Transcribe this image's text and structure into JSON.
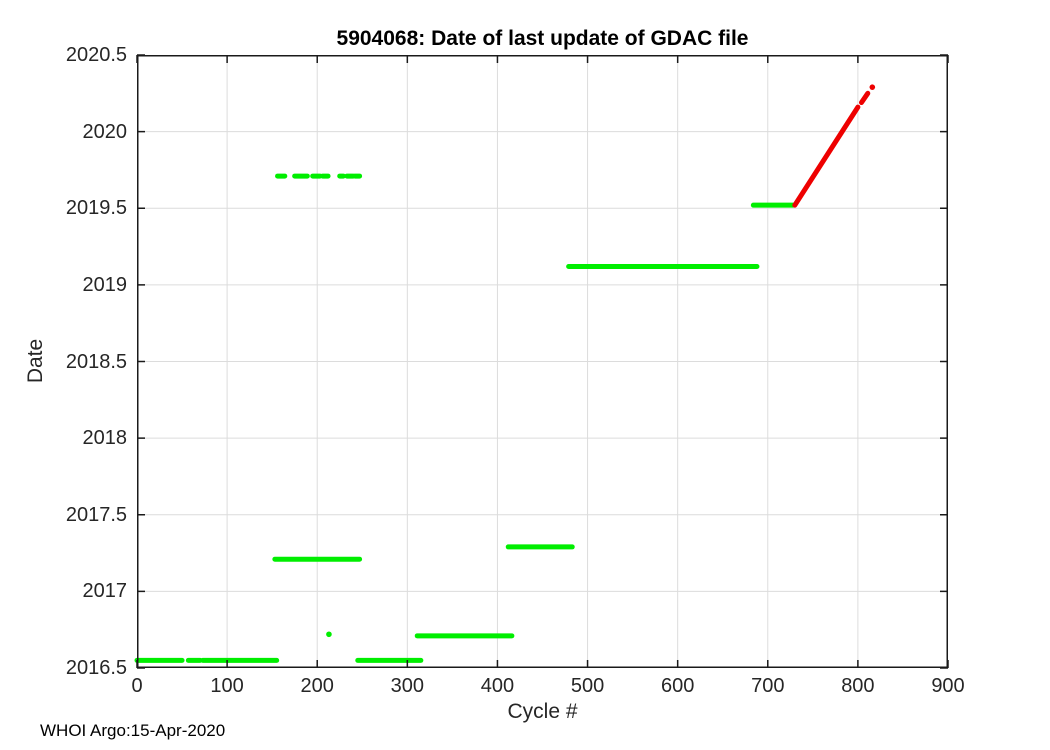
{
  "footer": {
    "text": "WHOI Argo:15-Apr-2020"
  },
  "chart_data": {
    "type": "scatter",
    "title": "5904068: Date of last update of GDAC file",
    "xlabel": "Cycle #",
    "ylabel": "Date",
    "xlim": [
      0,
      900
    ],
    "ylim": [
      2016.5,
      2020.5
    ],
    "grid": true,
    "legend": "none",
    "xticks": [
      0,
      100,
      200,
      300,
      400,
      500,
      600,
      700,
      800,
      900
    ],
    "xtick_labels": [
      "0",
      "100",
      "200",
      "300",
      "400",
      "500",
      "600",
      "700",
      "800",
      "900"
    ],
    "yticks": [
      2016.5,
      2017,
      2017.5,
      2018,
      2018.5,
      2019,
      2019.5,
      2020,
      2020.5
    ],
    "ytick_labels": [
      "2016.5",
      "2017",
      "2017.5",
      "2018",
      "2018.5",
      "2019",
      "2019.5",
      "2020",
      "2020.5"
    ],
    "colors": {
      "green": "#00ee00",
      "red": "#ee0000",
      "grid": "#dcdcdc",
      "frame": "#1a1a1a"
    },
    "marker_px": 5,
    "series": [
      {
        "name": "gdac-update-date-green",
        "color": "green",
        "style": "dot-markers",
        "segments": [
          {
            "x1": 0,
            "x2": 50,
            "y": 2016.55
          },
          {
            "x1": 57,
            "x2": 70,
            "y": 2016.55
          },
          {
            "x1": 73,
            "x2": 155,
            "y": 2016.55
          },
          {
            "x1": 153,
            "x2": 247,
            "y": 2017.21
          },
          {
            "x1": 245,
            "x2": 315,
            "y": 2016.55
          },
          {
            "x1": 311,
            "x2": 416,
            "y": 2016.71
          },
          {
            "x1": 412,
            "x2": 483,
            "y": 2017.29
          },
          {
            "x1": 479,
            "x2": 688,
            "y": 2019.12
          },
          {
            "x1": 684,
            "x2": 728,
            "y": 2019.52
          },
          {
            "x1": 156,
            "x2": 164,
            "y": 2019.71
          },
          {
            "x1": 175,
            "x2": 189,
            "y": 2019.71
          },
          {
            "x1": 195,
            "x2": 203,
            "y": 2019.71
          },
          {
            "x1": 206,
            "x2": 212,
            "y": 2019.71
          },
          {
            "x1": 225,
            "x2": 229,
            "y": 2019.71
          },
          {
            "x1": 233,
            "x2": 240,
            "y": 2019.71
          },
          {
            "x1": 242,
            "x2": 247,
            "y": 2019.71
          }
        ],
        "points": [
          {
            "x": 213,
            "y": 2016.72
          }
        ]
      },
      {
        "name": "recent-update-trend-red",
        "color": "red",
        "style": "dot-markers",
        "segments": [
          {
            "x1": 730,
            "y1": 2019.52,
            "x2": 800,
            "y2": 2020.16
          },
          {
            "x1": 804,
            "y1": 2020.19,
            "x2": 811,
            "y2": 2020.25
          }
        ],
        "points": [
          {
            "x": 816,
            "y": 2020.29
          }
        ]
      }
    ]
  }
}
